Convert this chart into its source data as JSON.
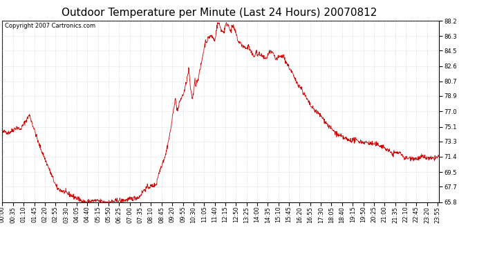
{
  "title": "Outdoor Temperature per Minute (Last 24 Hours) 20070812",
  "copyright_text": "Copyright 2007 Cartronics.com",
  "line_color": "#cc0000",
  "background_color": "#ffffff",
  "grid_color": "#bbbbbb",
  "ylim": [
    65.8,
    88.2
  ],
  "yticks": [
    65.8,
    67.7,
    69.5,
    71.4,
    73.3,
    75.1,
    77.0,
    78.9,
    80.7,
    82.6,
    84.5,
    86.3,
    88.2
  ],
  "title_fontsize": 11,
  "tick_fontsize": 6,
  "copyright_fontsize": 6,
  "num_points": 1440,
  "tick_interval_minutes": 35
}
